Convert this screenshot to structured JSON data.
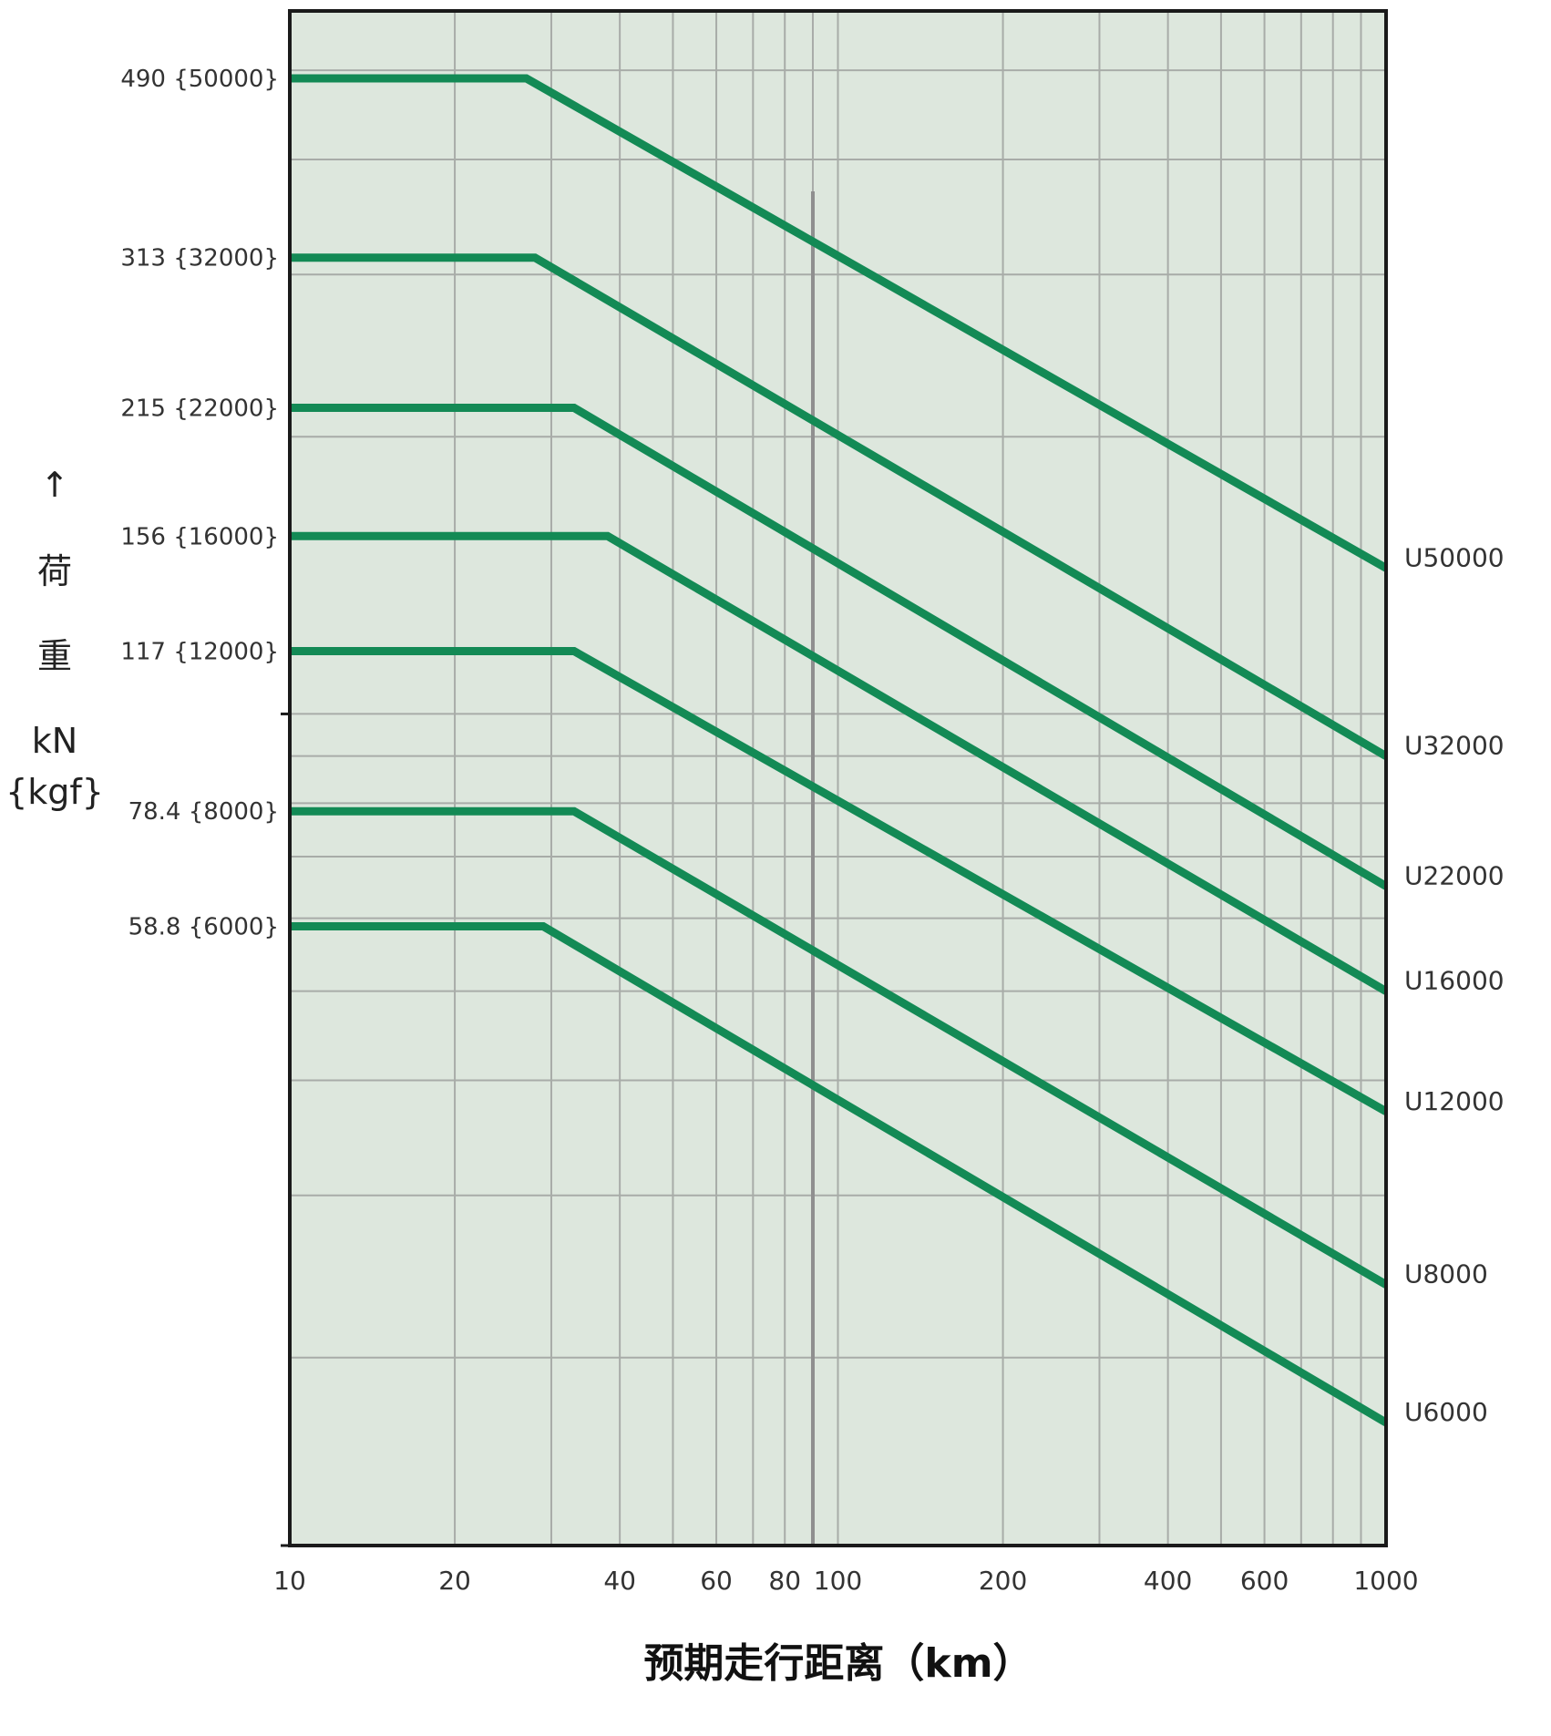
{
  "colors": {
    "plot_bg": "#dde7dd",
    "line": "#138a55",
    "grid": "#a8aca8",
    "frame": "#1a1a1a"
  },
  "chart_data": {
    "type": "line",
    "xscale": "log",
    "yscale": "log",
    "xlim": [
      10,
      1000
    ],
    "ylim": [
      12.5,
      580
    ],
    "grid": true,
    "xlabel": "预期走行距离（km）",
    "ylabel_lines": [
      "↑",
      "荷",
      "重",
      "kN",
      "{kgf}"
    ],
    "x_ticks": [
      10,
      20,
      40,
      60,
      80,
      100,
      200,
      400,
      600,
      1000
    ],
    "x_tick_labels": [
      "10",
      "20",
      "40",
      "60",
      "80",
      "100",
      "200",
      "400",
      "600",
      "1000"
    ],
    "y_ticks": [
      490,
      313,
      215,
      156,
      117,
      78.4,
      58.8
    ],
    "y_tick_labels": [
      "490 {50000}",
      "313 {32000}",
      "215 {22000}",
      "156 {16000}",
      "117 {12000}",
      "78.4 {8000}",
      "58.8 {6000}"
    ],
    "legend_placement": "right-end-of-each-line",
    "series": [
      {
        "name": "U50000",
        "x": [
          10,
          27,
          1000
        ],
        "y": [
          490,
          490,
          144
        ]
      },
      {
        "name": "U32000",
        "x": [
          10,
          28,
          1000
        ],
        "y": [
          313,
          313,
          90
        ]
      },
      {
        "name": "U22000",
        "x": [
          10,
          33,
          1000
        ],
        "y": [
          215,
          215,
          65
        ]
      },
      {
        "name": "U16000",
        "x": [
          10,
          38,
          1000
        ],
        "y": [
          156,
          156,
          50
        ]
      },
      {
        "name": "U12000",
        "x": [
          10,
          33,
          1000
        ],
        "y": [
          117,
          117,
          37
        ]
      },
      {
        "name": "U8000",
        "x": [
          10,
          33,
          1000
        ],
        "y": [
          78.4,
          78.4,
          24
        ]
      },
      {
        "name": "U6000",
        "x": [
          10,
          29,
          1000
        ],
        "y": [
          58.8,
          58.8,
          17
        ]
      }
    ]
  }
}
